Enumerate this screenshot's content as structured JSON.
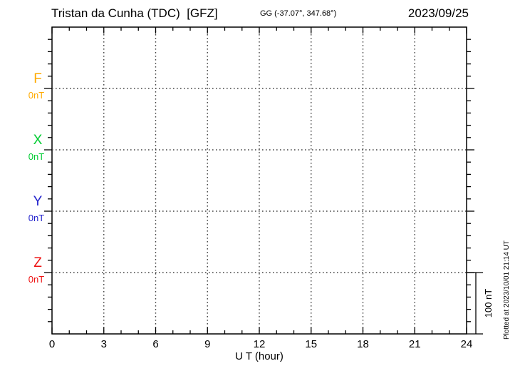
{
  "header": {
    "title": "Tristan da Cunha (TDC)  [GFZ]",
    "coordinates": "GG (-37.07°, 347.68°)",
    "date": "2023/09/25"
  },
  "chart_data": {
    "type": "line",
    "title": "Tristan da Cunha (TDC)  [GFZ]",
    "subtitle": "GG (-37.07°, 347.68°)",
    "date": "2023/09/25",
    "xlabel": "U T (hour)",
    "xlim": [
      0,
      24
    ],
    "x_major_ticks": [
      0,
      3,
      6,
      9,
      12,
      15,
      18,
      21,
      24
    ],
    "x_tick_labels": [
      "0",
      "3",
      "6",
      "9",
      "12",
      "15",
      "18",
      "21",
      "24"
    ],
    "x_minor_tick_step_hours": 1,
    "grid": "dotted vertical lines at 3-hour marks, dotted horizontal line at each component baseline",
    "legend_position": "left",
    "components": [
      {
        "name": "F",
        "baseline_value_label": "0nT",
        "color": "#FFAA00",
        "values": []
      },
      {
        "name": "X",
        "baseline_value_label": "0nT",
        "color": "#00CC33",
        "values": []
      },
      {
        "name": "Y",
        "baseline_value_label": "0nT",
        "color": "#2222CC",
        "values": []
      },
      {
        "name": "Z",
        "baseline_value_label": "0nT",
        "color": "#EE1111",
        "values": []
      }
    ],
    "scale_bar": {
      "label": "100 nT",
      "nt_per_division": 100
    },
    "footer_note": "Plotted at 2023/10/01 21:14 UT"
  }
}
